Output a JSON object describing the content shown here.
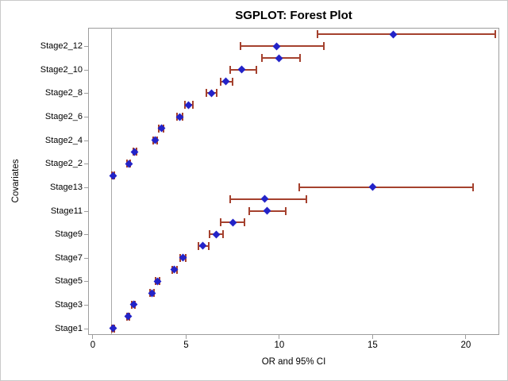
{
  "chart_data": {
    "type": "forest",
    "title": "SGPLOT: Forest Plot",
    "xlabel": "OR and 95% CI",
    "ylabel": "Covariates",
    "x_ticks": [
      0,
      5,
      10,
      15,
      20
    ],
    "xlim": [
      -0.21,
      21.75
    ],
    "reference_line_x": 1,
    "grid": false,
    "legend": "none",
    "colors": {
      "marker": "#2323c8",
      "error_bar": "#a5412e",
      "axis": "#9d9d9d",
      "reference_line": "#a9a9a9",
      "text": "#000000",
      "frame": "#c9c9c9",
      "background": "#ffffff"
    },
    "rows_top_to_bottom": [
      {
        "label": "",
        "or": 16.1,
        "low": 12.05,
        "high": 21.6
      },
      {
        "label": "Stage2_12",
        "or": 9.85,
        "low": 7.9,
        "high": 12.4
      },
      {
        "label": "",
        "or": 10.0,
        "low": 9.05,
        "high": 11.1
      },
      {
        "label": "Stage2_10",
        "or": 8.0,
        "low": 7.35,
        "high": 8.75
      },
      {
        "label": "",
        "or": 7.15,
        "low": 6.85,
        "high": 7.5
      },
      {
        "label": "Stage2_8",
        "or": 6.35,
        "low": 6.1,
        "high": 6.65
      },
      {
        "label": "",
        "or": 5.15,
        "low": 4.95,
        "high": 5.35
      },
      {
        "label": "Stage2_6",
        "or": 4.65,
        "low": 4.5,
        "high": 4.8
      },
      {
        "label": "",
        "or": 3.67,
        "low": 3.55,
        "high": 3.81
      },
      {
        "label": "Stage2_4",
        "or": 3.33,
        "low": 3.22,
        "high": 3.46
      },
      {
        "label": "",
        "or": 2.25,
        "low": 2.17,
        "high": 2.33
      },
      {
        "label": "Stage2_2",
        "or": 1.93,
        "low": 1.84,
        "high": 2.01
      },
      {
        "label": "",
        "or": 1.1,
        "low": 1.03,
        "high": 1.16
      },
      {
        "label": "Stage13",
        "or": 15.0,
        "low": 11.05,
        "high": 20.4
      },
      {
        "label": "",
        "or": 9.2,
        "low": 7.35,
        "high": 11.45
      },
      {
        "label": "Stage11",
        "or": 9.35,
        "low": 8.4,
        "high": 10.35
      },
      {
        "label": "",
        "or": 7.5,
        "low": 6.87,
        "high": 8.15
      },
      {
        "label": "Stage9",
        "or": 6.64,
        "low": 6.26,
        "high": 7.0
      },
      {
        "label": "",
        "or": 5.9,
        "low": 5.66,
        "high": 6.2
      },
      {
        "label": "Stage7",
        "or": 4.84,
        "low": 4.7,
        "high": 5.0
      },
      {
        "label": "",
        "or": 4.38,
        "low": 4.26,
        "high": 4.52
      },
      {
        "label": "Stage5",
        "or": 3.48,
        "low": 3.37,
        "high": 3.59
      },
      {
        "label": "",
        "or": 3.16,
        "low": 3.06,
        "high": 3.26
      },
      {
        "label": "Stage3",
        "or": 2.18,
        "low": 2.1,
        "high": 2.27
      },
      {
        "label": "",
        "or": 1.9,
        "low": 1.83,
        "high": 1.97
      },
      {
        "label": "Stage1",
        "or": 1.09,
        "low": 1.02,
        "high": 1.16
      }
    ]
  }
}
